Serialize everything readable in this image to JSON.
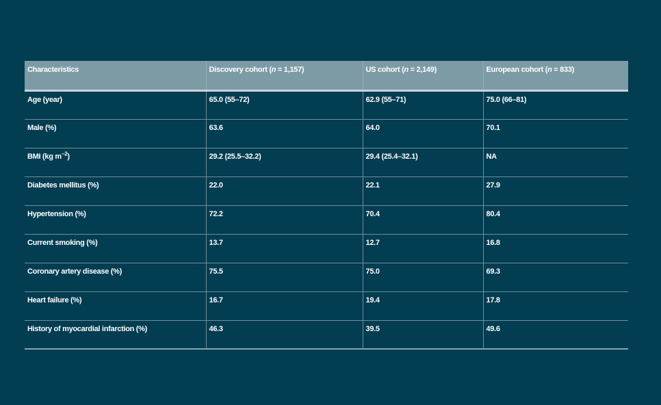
{
  "table": {
    "headers": {
      "characteristics": "Characteristics",
      "discovery": {
        "prefix": "Discovery cohort (",
        "n": "n",
        "suffix": " = 1,157)"
      },
      "us": {
        "prefix": "US cohort (",
        "n": "n",
        "suffix": " = 2,149)"
      },
      "european": {
        "prefix": "European cohort (",
        "n": "n",
        "suffix": " = 833)"
      }
    },
    "rows": [
      {
        "label": "Age (year)",
        "discovery": "65.0 (55–72)",
        "us": "62.9 (55–71)",
        "european": "75.0 (66–81)"
      },
      {
        "label": "Male (%)",
        "discovery": "63.6",
        "us": "64.0",
        "european": "70.1"
      },
      {
        "label": "BMI (kg m",
        "label_sup": "−2",
        "label_end": ")",
        "discovery": "29.2 (25.5–32.2)",
        "us": "29.4 (25.4–32.1)",
        "european": "NA"
      },
      {
        "label": "Diabetes mellitus (%)",
        "discovery": "22.0",
        "us": "22.1",
        "european": "27.9"
      },
      {
        "label": "Hypertension (%)",
        "discovery": "72.2",
        "us": "70.4",
        "european": "80.4"
      },
      {
        "label": "Current smoking (%)",
        "discovery": "13.7",
        "us": "12.7",
        "european": "16.8"
      },
      {
        "label": "Coronary artery disease (%)",
        "discovery": "75.5",
        "us": "75.0",
        "european": "69.3"
      },
      {
        "label": "Heart failure (%)",
        "discovery": "16.7",
        "us": "19.4",
        "european": "17.8"
      },
      {
        "label": "History of myocardial infarction (%)",
        "discovery": "46.3",
        "us": "39.5",
        "european": "49.6"
      }
    ]
  }
}
